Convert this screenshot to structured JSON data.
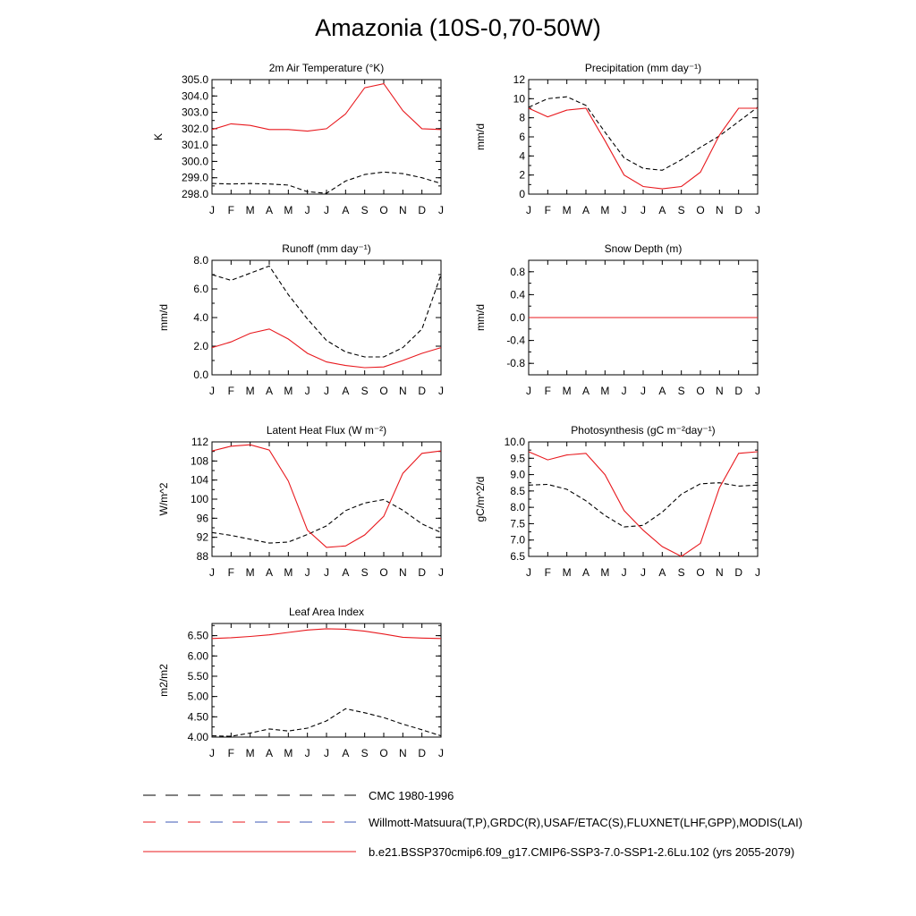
{
  "title": "Amazonia (10S-0,70-50W)",
  "months": [
    "J",
    "F",
    "M",
    "A",
    "M",
    "J",
    "J",
    "A",
    "S",
    "O",
    "N",
    "D",
    "J"
  ],
  "colors": {
    "model": "#e8191e",
    "obs": "#000000",
    "obs2": "#3d58b4"
  },
  "legend": [
    {
      "label": "CMC 1980-1996",
      "style": "dashed-black"
    },
    {
      "label": "Willmott-Matsuura(T,P),GRDC(R),USAF/ETAC(S),FLUXNET(LHF,GPP),MODIS(LAI)",
      "style": "dashed-red-blue"
    },
    {
      "label": "b.e21.BSSP370cmip6.f09_g17.CMIP6-SSP3-7.0-SSP1-2.6Lu.102 (yrs 2055-2079)",
      "style": "solid-red"
    }
  ],
  "chart_data": [
    {
      "type": "line",
      "title": "2m Air Temperature (°K)",
      "ylabel": "K",
      "ylim": [
        298.0,
        305.0
      ],
      "yticks": [
        "298.0",
        "299.0",
        "300.0",
        "301.0",
        "302.0",
        "303.0",
        "304.0",
        "305.0"
      ],
      "ytick_values": [
        298,
        299,
        300,
        301,
        302,
        303,
        304,
        305
      ],
      "series": [
        {
          "style": "solid",
          "values": [
            301.95,
            302.3,
            302.2,
            301.95,
            301.95,
            301.85,
            302.0,
            302.9,
            304.5,
            304.75,
            303.1,
            302.0,
            301.95
          ]
        },
        {
          "style": "dashed",
          "values": [
            298.65,
            298.62,
            298.65,
            298.62,
            298.55,
            298.15,
            298.05,
            298.8,
            299.2,
            299.35,
            299.25,
            299.0,
            298.65
          ]
        }
      ]
    },
    {
      "type": "line",
      "title": "Precipitation (mm day⁻¹)",
      "ylabel": "mm/d",
      "ylim": [
        0,
        12
      ],
      "yticks": [
        "0",
        "2",
        "4",
        "6",
        "8",
        "10",
        "12"
      ],
      "ytick_values": [
        0,
        2,
        4,
        6,
        8,
        10,
        12
      ],
      "series": [
        {
          "style": "solid",
          "values": [
            9.0,
            8.1,
            8.8,
            9.0,
            5.6,
            2.0,
            0.8,
            0.55,
            0.8,
            2.3,
            6.2,
            9.0,
            9.0
          ]
        },
        {
          "style": "dashed",
          "values": [
            9.1,
            10.0,
            10.2,
            9.3,
            6.5,
            3.8,
            2.7,
            2.5,
            3.6,
            4.9,
            6.1,
            7.6,
            9.1
          ]
        }
      ]
    },
    {
      "type": "line",
      "title": "Runoff (mm day⁻¹)",
      "ylabel": "mm/d",
      "ylim": [
        0,
        8
      ],
      "yticks": [
        "0.0",
        "2.0",
        "4.0",
        "6.0",
        "8.0"
      ],
      "ytick_values": [
        0,
        2,
        4,
        6,
        8
      ],
      "series": [
        {
          "style": "solid",
          "values": [
            1.9,
            2.3,
            2.9,
            3.2,
            2.5,
            1.5,
            0.9,
            0.65,
            0.5,
            0.55,
            1.0,
            1.5,
            1.9
          ]
        },
        {
          "style": "dashed",
          "values": [
            7.0,
            6.6,
            7.1,
            7.6,
            5.6,
            3.9,
            2.4,
            1.6,
            1.25,
            1.25,
            1.9,
            3.2,
            7.0
          ]
        }
      ]
    },
    {
      "type": "line",
      "title": "Snow Depth (m)",
      "ylabel": "mm/d",
      "ylim": [
        -1.0,
        1.0
      ],
      "yticks": [
        "-0.8",
        "-0.4",
        "0.0",
        "0.4",
        "0.8"
      ],
      "ytick_values": [
        -0.8,
        -0.4,
        0,
        0.4,
        0.8
      ],
      "series": [
        {
          "style": "solid",
          "values": [
            0,
            0,
            0,
            0,
            0,
            0,
            0,
            0,
            0,
            0,
            0,
            0,
            0
          ]
        },
        {
          "style": "dashed",
          "values": [
            0,
            0,
            0,
            0,
            0,
            0,
            0,
            0,
            0,
            0,
            0,
            0,
            0
          ]
        }
      ]
    },
    {
      "type": "line",
      "title": "Latent Heat Flux (W m⁻²)",
      "ylabel": "W/m^2",
      "ylim": [
        88,
        112
      ],
      "yticks": [
        "88",
        "92",
        "96",
        "100",
        "104",
        "108",
        "112"
      ],
      "ytick_values": [
        88,
        92,
        96,
        100,
        104,
        108,
        112
      ],
      "series": [
        {
          "style": "solid",
          "values": [
            110.1,
            111.1,
            111.4,
            110.3,
            103.8,
            93.5,
            89.9,
            90.2,
            92.5,
            96.4,
            105.4,
            109.6,
            110.1
          ]
        },
        {
          "style": "dashed",
          "values": [
            93.0,
            92.4,
            91.6,
            90.8,
            91.0,
            92.6,
            94.4,
            97.6,
            99.2,
            99.9,
            97.7,
            94.8,
            93.0
          ]
        }
      ]
    },
    {
      "type": "line",
      "title": "Photosynthesis (gC m⁻²day⁻¹)",
      "ylabel": "gC/m^2/d",
      "ylim": [
        6.5,
        10.0
      ],
      "yticks": [
        "6.5",
        "7.0",
        "7.5",
        "8.0",
        "8.5",
        "9.0",
        "9.5",
        "10.0"
      ],
      "ytick_values": [
        6.5,
        7.0,
        7.5,
        8.0,
        8.5,
        9.0,
        9.5,
        10.0
      ],
      "series": [
        {
          "style": "solid",
          "values": [
            9.7,
            9.45,
            9.6,
            9.65,
            9.0,
            7.9,
            7.3,
            6.8,
            6.5,
            6.9,
            8.6,
            9.65,
            9.7
          ]
        },
        {
          "style": "dashed",
          "values": [
            8.68,
            8.7,
            8.55,
            8.2,
            7.75,
            7.4,
            7.45,
            7.85,
            8.4,
            8.72,
            8.75,
            8.65,
            8.68
          ]
        }
      ]
    },
    {
      "type": "line",
      "title": "Leaf Area Index",
      "ylabel": "m2/m2",
      "ylim": [
        4.0,
        6.8
      ],
      "yticks": [
        "4.00",
        "4.50",
        "5.00",
        "5.50",
        "6.00",
        "6.50"
      ],
      "ytick_values": [
        4.0,
        4.5,
        5.0,
        5.5,
        6.0,
        6.5
      ],
      "series": [
        {
          "style": "solid",
          "values": [
            6.43,
            6.45,
            6.48,
            6.52,
            6.58,
            6.64,
            6.67,
            6.66,
            6.61,
            6.54,
            6.46,
            6.44,
            6.43
          ]
        },
        {
          "style": "dashed",
          "values": [
            4.03,
            4.02,
            4.1,
            4.2,
            4.15,
            4.22,
            4.4,
            4.7,
            4.6,
            4.48,
            4.32,
            4.18,
            4.03
          ]
        }
      ]
    }
  ]
}
